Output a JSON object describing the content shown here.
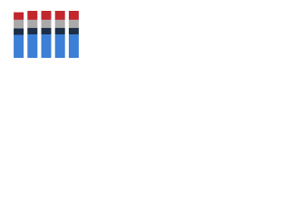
{
  "chart_data": {
    "type": "stacked-bar",
    "categories": [
      null,
      null,
      null,
      null,
      null
    ],
    "series": [
      {
        "color": "#3b7fd6",
        "values": [
          49,
          50,
          50,
          50,
          50
        ]
      },
      {
        "color": "#1d2e47",
        "values": [
          14,
          14,
          14,
          14,
          14
        ]
      },
      {
        "color": "#aaaaaa",
        "values": [
          18,
          17,
          17,
          17,
          17
        ]
      },
      {
        "color": "#c2272d",
        "values": [
          16,
          19,
          19,
          19,
          19
        ]
      }
    ],
    "ylim": [
      0,
      100
    ]
  }
}
